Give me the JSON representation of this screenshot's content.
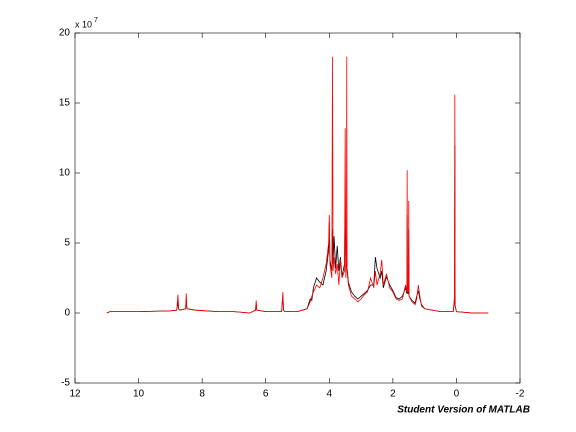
{
  "chart_data": {
    "type": "line",
    "y_exponent_base": "x 10",
    "y_exponent": "7",
    "watermark": "Student Version of MATLAB",
    "xlim": [
      12,
      -2
    ],
    "xticks": [
      12,
      10,
      8,
      6,
      4,
      2,
      0,
      -2
    ],
    "ylim": [
      -5,
      20
    ],
    "yticks": [
      -5,
      0,
      5,
      10,
      15,
      20
    ],
    "x": [
      11,
      10.9,
      10,
      9,
      8.8,
      8.76,
      8.74,
      8.7,
      8.52,
      8.5,
      8.48,
      8.2,
      7.5,
      7.0,
      6.5,
      6.32,
      6.3,
      6.28,
      6.0,
      5.5,
      5.46,
      5.44,
      5.4,
      5.0,
      4.7,
      4.6,
      4.55,
      4.5,
      4.4,
      4.3,
      4.2,
      4.1,
      4.02,
      4.0,
      3.98,
      3.92,
      3.9,
      3.88,
      3.85,
      3.8,
      3.75,
      3.7,
      3.65,
      3.6,
      3.52,
      3.5,
      3.48,
      3.46,
      3.45,
      3.44,
      3.4,
      3.3,
      3.2,
      3.1,
      3.0,
      2.9,
      2.8,
      2.7,
      2.6,
      2.55,
      2.5,
      2.4,
      2.35,
      2.3,
      2.2,
      2.1,
      2.0,
      1.9,
      1.8,
      1.7,
      1.6,
      1.56,
      1.55,
      1.54,
      1.51,
      1.5,
      1.49,
      1.4,
      1.3,
      1.25,
      1.2,
      1.15,
      1.1,
      1.0,
      0.5,
      0.1,
      0.06,
      0.05,
      0.04,
      0.0,
      -0.5,
      -1.0
    ],
    "series": [
      {
        "color": "#000000",
        "values": [
          0,
          0.1,
          0.1,
          0.15,
          0.2,
          0.8,
          0.3,
          0.2,
          0.3,
          1.0,
          0.3,
          0.2,
          0.1,
          0.1,
          0,
          0.2,
          0.7,
          0.2,
          0.1,
          0.1,
          1.2,
          0.2,
          0.1,
          0.1,
          0.3,
          1.0,
          0.9,
          1.8,
          2.5,
          2.2,
          2.0,
          3.0,
          4.5,
          6.5,
          3.8,
          3.0,
          6.0,
          3.5,
          5.5,
          3.2,
          4.8,
          3.0,
          4.0,
          2.6,
          3.5,
          8.0,
          3.0,
          3.5,
          5.0,
          3.2,
          2.2,
          1.5,
          1.2,
          1.0,
          1.2,
          1.4,
          1.6,
          2.0,
          2.0,
          4.0,
          3.2,
          2.5,
          3.0,
          1.8,
          2.6,
          2.0,
          1.6,
          1.1,
          1.0,
          1.2,
          1.8,
          1.4,
          7.0,
          1.4,
          1.4,
          6.0,
          1.2,
          0.9,
          0.7,
          1.2,
          1.6,
          1.0,
          0.6,
          0.3,
          0.1,
          0.1,
          1.0,
          12.0,
          0.5,
          0.1,
          0,
          0
        ]
      },
      {
        "color": "#ff0000",
        "values": [
          0,
          0.1,
          0.1,
          0.15,
          0.2,
          1.3,
          0.3,
          0.2,
          0.3,
          1.4,
          0.3,
          0.2,
          0.1,
          0.1,
          0,
          0.2,
          0.9,
          0.2,
          0.1,
          0.1,
          1.5,
          0.2,
          0.1,
          0.1,
          0.3,
          0.8,
          1.2,
          1.5,
          2.0,
          1.8,
          2.5,
          3.5,
          5.0,
          7.0,
          3.5,
          2.5,
          18.3,
          3.0,
          4.0,
          2.8,
          3.5,
          2.0,
          3.8,
          2.5,
          3.0,
          13.2,
          2.5,
          4.0,
          18.3,
          3.0,
          2.0,
          1.2,
          1.0,
          0.8,
          1.0,
          1.3,
          1.5,
          2.5,
          1.8,
          3.0,
          2.0,
          2.8,
          3.8,
          2.0,
          2.8,
          1.8,
          1.5,
          1.0,
          0.9,
          1.0,
          2.0,
          1.5,
          10.2,
          1.5,
          1.5,
          8.0,
          1.2,
          0.8,
          0.6,
          1.0,
          2.0,
          1.2,
          0.5,
          0.3,
          0.1,
          0.1,
          1.2,
          15.6,
          0.5,
          0.1,
          0,
          0
        ]
      }
    ]
  }
}
